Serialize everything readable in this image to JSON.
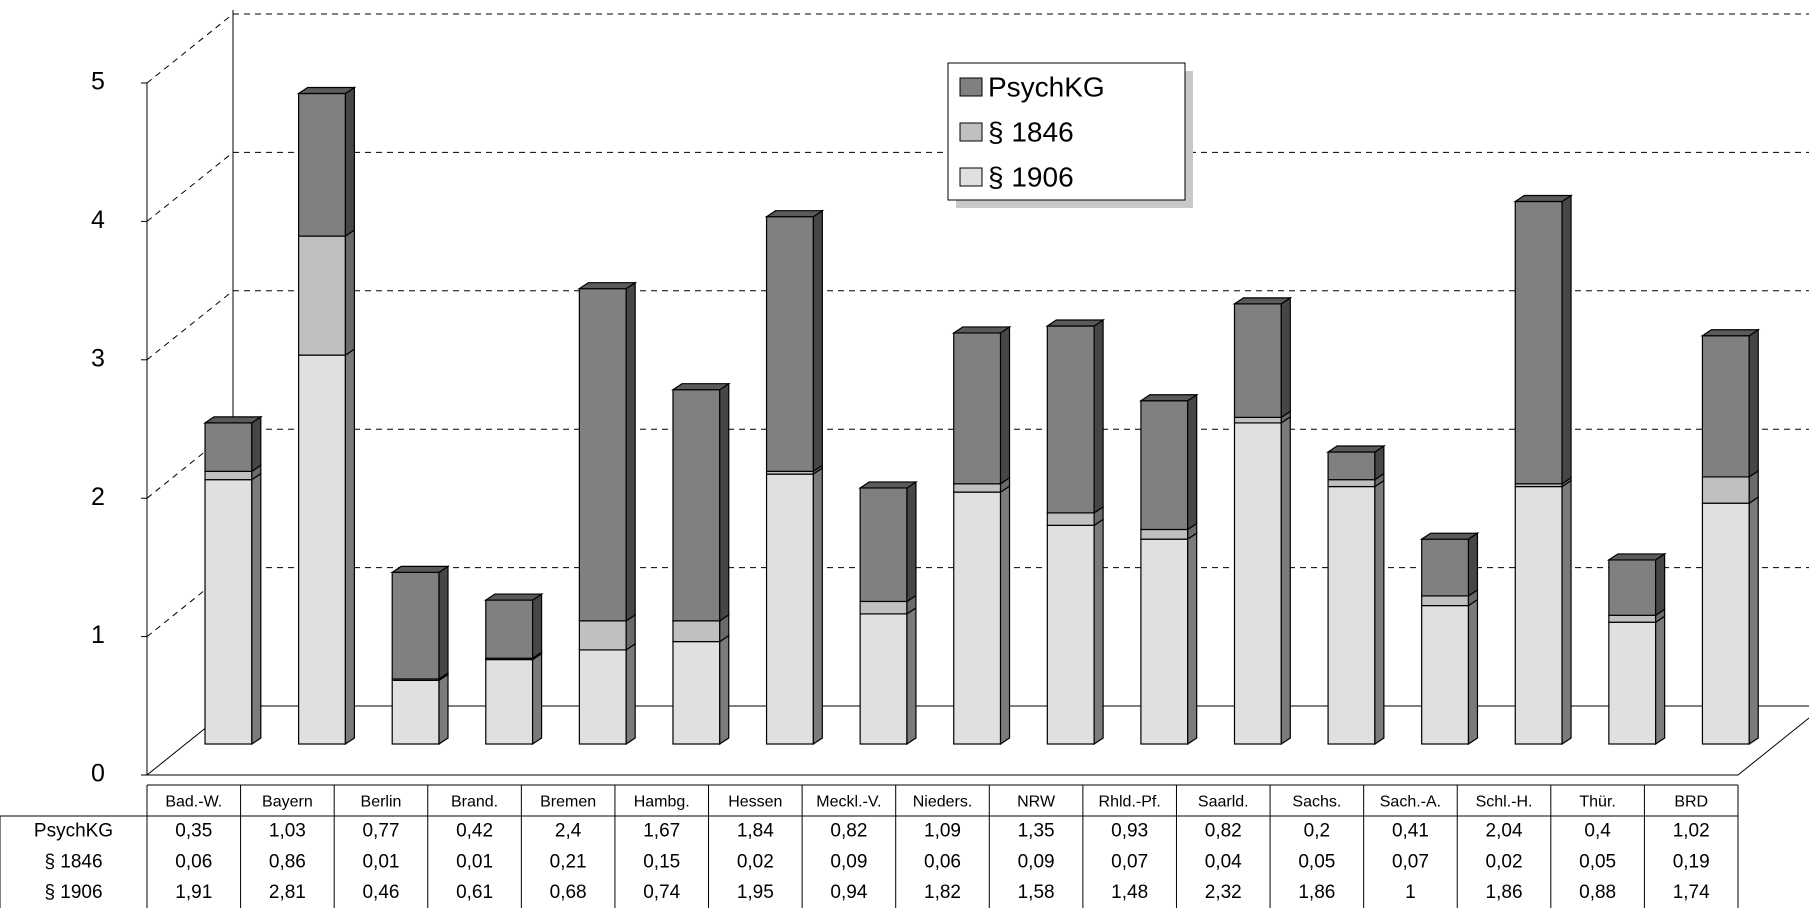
{
  "chart_data": {
    "type": "bar",
    "stacked": true,
    "three_d": true,
    "categories": [
      "Bad.-W.",
      "Bayern",
      "Berlin",
      "Brand.",
      "Bremen",
      "Hambg.",
      "Hessen",
      "Meckl.-V.",
      "Nieders.",
      "NRW",
      "Rhld.-Pf.",
      "Saarld.",
      "Sachs.",
      "Sach.-A.",
      "Schl.-H.",
      "Thür.",
      "BRD"
    ],
    "series": [
      {
        "name": "PsychKG",
        "color": "#808080",
        "values": [
          0.35,
          1.03,
          0.77,
          0.42,
          2.4,
          1.67,
          1.84,
          0.82,
          1.09,
          1.35,
          0.93,
          0.82,
          0.2,
          0.41,
          2.04,
          0.4,
          1.02
        ],
        "value_labels": [
          "0,35",
          "1,03",
          "0,77",
          "0,42",
          "2,4",
          "1,67",
          "1,84",
          "0,82",
          "1,09",
          "1,35",
          "0,93",
          "0,82",
          "0,2",
          "0,41",
          "2,04",
          "0,4",
          "1,02"
        ]
      },
      {
        "name": "§ 1846",
        "color": "#c0c0c0",
        "values": [
          0.06,
          0.86,
          0.01,
          0.01,
          0.21,
          0.15,
          0.02,
          0.09,
          0.06,
          0.09,
          0.07,
          0.04,
          0.05,
          0.07,
          0.02,
          0.05,
          0.19
        ],
        "value_labels": [
          "0,06",
          "0,86",
          "0,01",
          "0,01",
          "0,21",
          "0,15",
          "0,02",
          "0,09",
          "0,06",
          "0,09",
          "0,07",
          "0,04",
          "0,05",
          "0,07",
          "0,02",
          "0,05",
          "0,19"
        ]
      },
      {
        "name": "§ 1906",
        "color": "#e0e0e0",
        "values": [
          1.91,
          2.81,
          0.46,
          0.61,
          0.68,
          0.74,
          1.95,
          0.94,
          1.82,
          1.58,
          1.48,
          2.32,
          1.86,
          1,
          1.86,
          0.88,
          1.74
        ],
        "value_labels": [
          "1,91",
          "2,81",
          "0,46",
          "0,61",
          "0,68",
          "0,74",
          "1,95",
          "0,94",
          "1,82",
          "1,58",
          "1,48",
          "2,32",
          "1,86",
          "1",
          "1,86",
          "0,88",
          "1,74"
        ]
      }
    ],
    "ylim": [
      0,
      5
    ],
    "yticks": [
      0,
      1,
      2,
      3,
      4,
      5
    ],
    "grid": true,
    "legend": "top-center",
    "data_table": true
  }
}
